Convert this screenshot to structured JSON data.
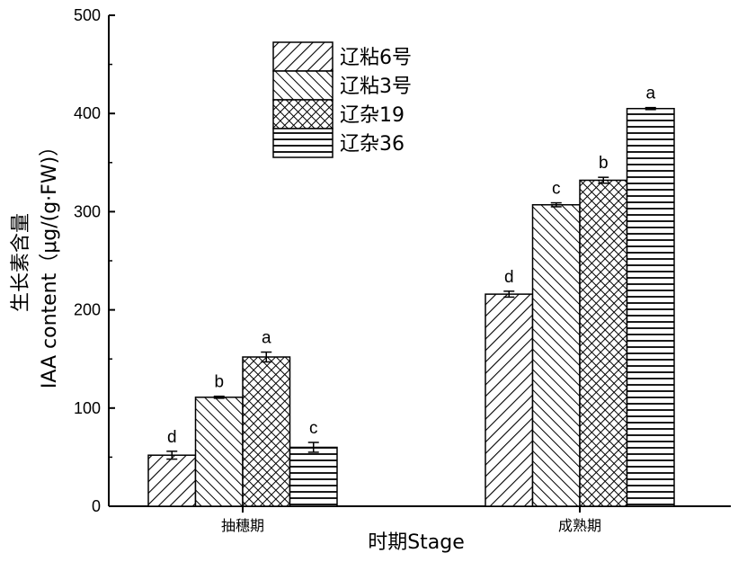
{
  "chart_data": {
    "type": "bar",
    "title": "",
    "xlabel": "时期Stage",
    "ylabel_line1": "生长素含量",
    "ylabel_line2": "IAA content（μg/(g·FW)）",
    "ylim": [
      0,
      500
    ],
    "yticks": [
      "0",
      "100",
      "200",
      "300",
      "400",
      "500"
    ],
    "categories": [
      "抽穗期",
      "成熟期"
    ],
    "legend_position": "top-center",
    "series": [
      {
        "name": "辽粘6号",
        "pattern": "diag-right",
        "values": [
          52,
          216
        ],
        "errors": [
          4,
          3
        ],
        "letters": [
          "d",
          "d"
        ]
      },
      {
        "name": "辽粘3号",
        "pattern": "diag-left",
        "values": [
          111,
          307
        ],
        "errors": [
          1,
          2
        ],
        "letters": [
          "b",
          "c"
        ]
      },
      {
        "name": "辽杂19",
        "pattern": "crosshatch",
        "values": [
          152,
          332
        ],
        "errors": [
          5,
          3
        ],
        "letters": [
          "a",
          "b"
        ]
      },
      {
        "name": "辽杂36",
        "pattern": "horizontal",
        "values": [
          60,
          405
        ],
        "errors": [
          5,
          1
        ],
        "letters": [
          "c",
          "a"
        ]
      }
    ]
  }
}
